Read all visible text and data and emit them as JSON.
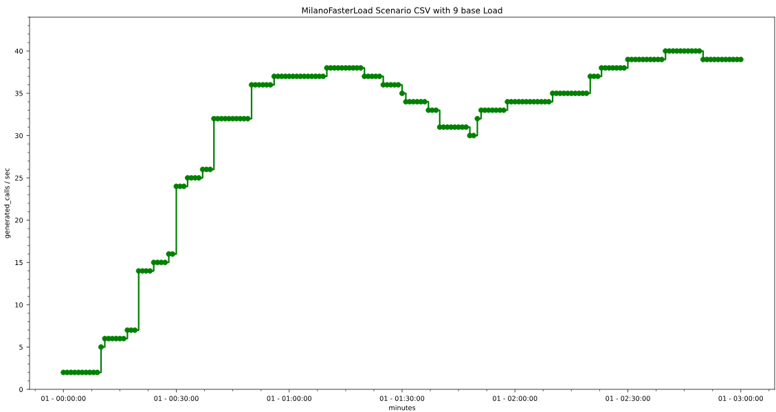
{
  "chart_data": {
    "type": "step",
    "title": "MilanoFasterLoad Scenario CSV with 9 base Load",
    "xlabel": "minutes",
    "ylabel": "generated_calls / sec",
    "categories": [
      "01 - 00:00:00",
      null,
      null,
      null,
      null,
      null,
      null,
      null,
      null,
      null,
      null,
      null,
      null,
      null,
      null,
      null,
      null,
      null,
      null,
      null,
      null,
      null,
      null,
      null,
      null,
      null,
      null,
      null,
      null,
      null,
      "01 - 00:30:00",
      null,
      null,
      null,
      null,
      null,
      null,
      null,
      null,
      null,
      null,
      null,
      null,
      null,
      null,
      null,
      null,
      null,
      null,
      null,
      null,
      null,
      null,
      null,
      null,
      null,
      null,
      null,
      null,
      null,
      "01 - 01:00:00",
      null,
      null,
      null,
      null,
      null,
      null,
      null,
      null,
      null,
      null,
      null,
      null,
      null,
      null,
      null,
      null,
      null,
      null,
      null,
      null,
      null,
      null,
      null,
      null,
      null,
      null,
      null,
      null,
      null,
      "01 - 01:30:00",
      null,
      null,
      null,
      null,
      null,
      null,
      null,
      null,
      null,
      null,
      null,
      null,
      null,
      null,
      null,
      null,
      null,
      null,
      null,
      null,
      null,
      null,
      null,
      null,
      null,
      null,
      null,
      null,
      null,
      "01 - 02:00:00",
      null,
      null,
      null,
      null,
      null,
      null,
      null,
      null,
      null,
      null,
      null,
      null,
      null,
      null,
      null,
      null,
      null,
      null,
      null,
      null,
      null,
      null,
      null,
      null,
      null,
      null,
      null,
      null,
      null,
      "01 - 02:30:00",
      null,
      null,
      null,
      null,
      null,
      null,
      null,
      null,
      null,
      null,
      null,
      null,
      null,
      null,
      null,
      null,
      null,
      null,
      null,
      null,
      null,
      null,
      null,
      null,
      null,
      null,
      null,
      null,
      null,
      "01 - 03:00:00"
    ],
    "values": [
      2,
      2,
      2,
      2,
      2,
      2,
      2,
      2,
      2,
      2,
      5,
      6,
      6,
      6,
      6,
      6,
      6,
      7,
      7,
      7,
      14,
      14,
      14,
      14,
      15,
      15,
      15,
      15,
      16,
      16,
      24,
      24,
      24,
      25,
      25,
      25,
      25,
      26,
      26,
      26,
      32,
      32,
      32,
      32,
      32,
      32,
      32,
      32,
      32,
      32,
      36,
      36,
      36,
      36,
      36,
      36,
      37,
      37,
      37,
      37,
      37,
      37,
      37,
      37,
      37,
      37,
      37,
      37,
      37,
      37,
      38,
      38,
      38,
      38,
      38,
      38,
      38,
      38,
      38,
      38,
      37,
      37,
      37,
      37,
      37,
      36,
      36,
      36,
      36,
      36,
      35,
      34,
      34,
      34,
      34,
      34,
      34,
      33,
      33,
      33,
      31,
      31,
      31,
      31,
      31,
      31,
      31,
      31,
      30,
      30,
      32,
      33,
      33,
      33,
      33,
      33,
      33,
      33,
      34,
      34,
      34,
      34,
      34,
      34,
      34,
      34,
      34,
      34,
      34,
      34,
      35,
      35,
      35,
      35,
      35,
      35,
      35,
      35,
      35,
      35,
      37,
      37,
      37,
      38,
      38,
      38,
      38,
      38,
      38,
      38,
      39,
      39,
      39,
      39,
      39,
      39,
      39,
      39,
      39,
      39,
      40,
      40,
      40,
      40,
      40,
      40,
      40,
      40,
      40,
      40,
      39,
      39,
      39,
      39,
      39,
      39,
      39,
      39,
      39,
      39,
      39
    ],
    "color": "#008000",
    "marker": "circle",
    "line_style": "solid",
    "ylim": [
      0,
      44
    ],
    "yticks": [
      0,
      5,
      10,
      15,
      20,
      25,
      30,
      35,
      40
    ]
  }
}
